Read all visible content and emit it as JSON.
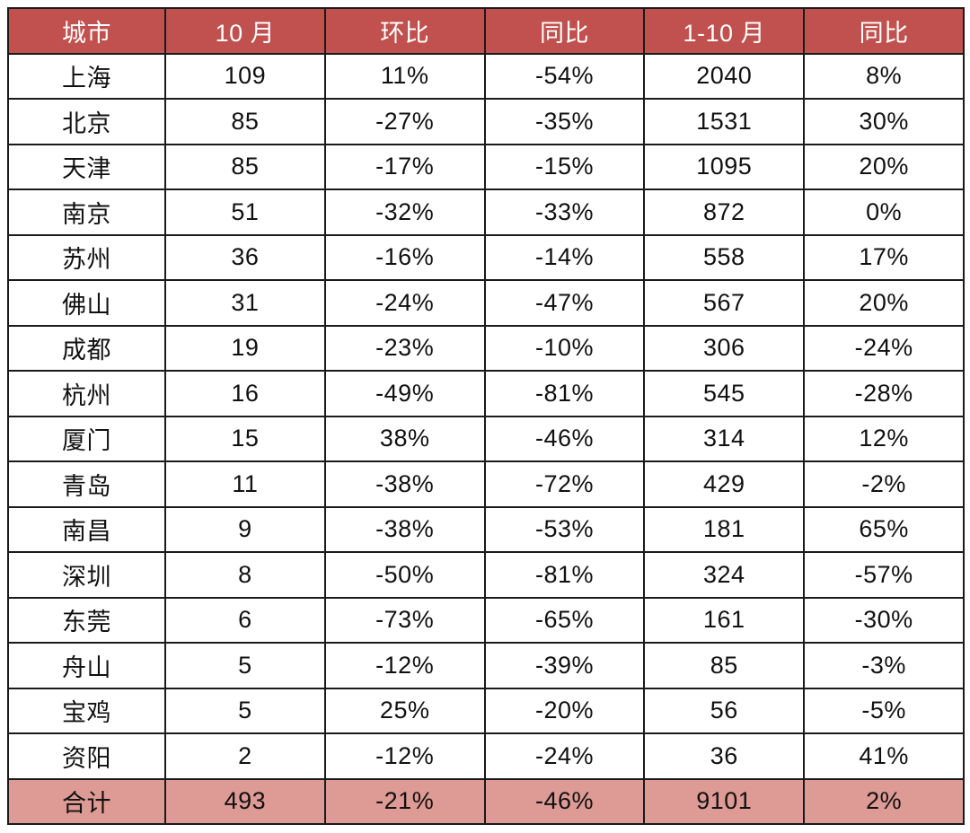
{
  "colors": {
    "header_bg": "#c0514e",
    "header_text": "#ffffff",
    "total_bg": "#de9a95",
    "border": "#1a1a1a",
    "body_text": "#111111",
    "page_bg": "#ffffff"
  },
  "table": {
    "name": "city-monthly-stats",
    "columns": [
      "城市",
      "10 月",
      "环比",
      "同比",
      "1-10 月",
      "同比"
    ],
    "rows": [
      [
        "上海",
        "109",
        "11%",
        "-54%",
        "2040",
        "8%"
      ],
      [
        "北京",
        "85",
        "-27%",
        "-35%",
        "1531",
        "30%"
      ],
      [
        "天津",
        "85",
        "-17%",
        "-15%",
        "1095",
        "20%"
      ],
      [
        "南京",
        "51",
        "-32%",
        "-33%",
        "872",
        "0%"
      ],
      [
        "苏州",
        "36",
        "-16%",
        "-14%",
        "558",
        "17%"
      ],
      [
        "佛山",
        "31",
        "-24%",
        "-47%",
        "567",
        "20%"
      ],
      [
        "成都",
        "19",
        "-23%",
        "-10%",
        "306",
        "-24%"
      ],
      [
        "杭州",
        "16",
        "-49%",
        "-81%",
        "545",
        "-28%"
      ],
      [
        "厦门",
        "15",
        "38%",
        "-46%",
        "314",
        "12%"
      ],
      [
        "青岛",
        "11",
        "-38%",
        "-72%",
        "429",
        "-2%"
      ],
      [
        "南昌",
        "9",
        "-38%",
        "-53%",
        "181",
        "65%"
      ],
      [
        "深圳",
        "8",
        "-50%",
        "-81%",
        "324",
        "-57%"
      ],
      [
        "东莞",
        "6",
        "-73%",
        "-65%",
        "161",
        "-30%"
      ],
      [
        "舟山",
        "5",
        "-12%",
        "-39%",
        "85",
        "-3%"
      ],
      [
        "宝鸡",
        "5",
        "25%",
        "-20%",
        "56",
        "-5%"
      ],
      [
        "资阳",
        "2",
        "-12%",
        "-24%",
        "36",
        "41%"
      ]
    ],
    "total_row": [
      "合计",
      "493",
      "-21%",
      "-46%",
      "9101",
      "2%"
    ]
  }
}
